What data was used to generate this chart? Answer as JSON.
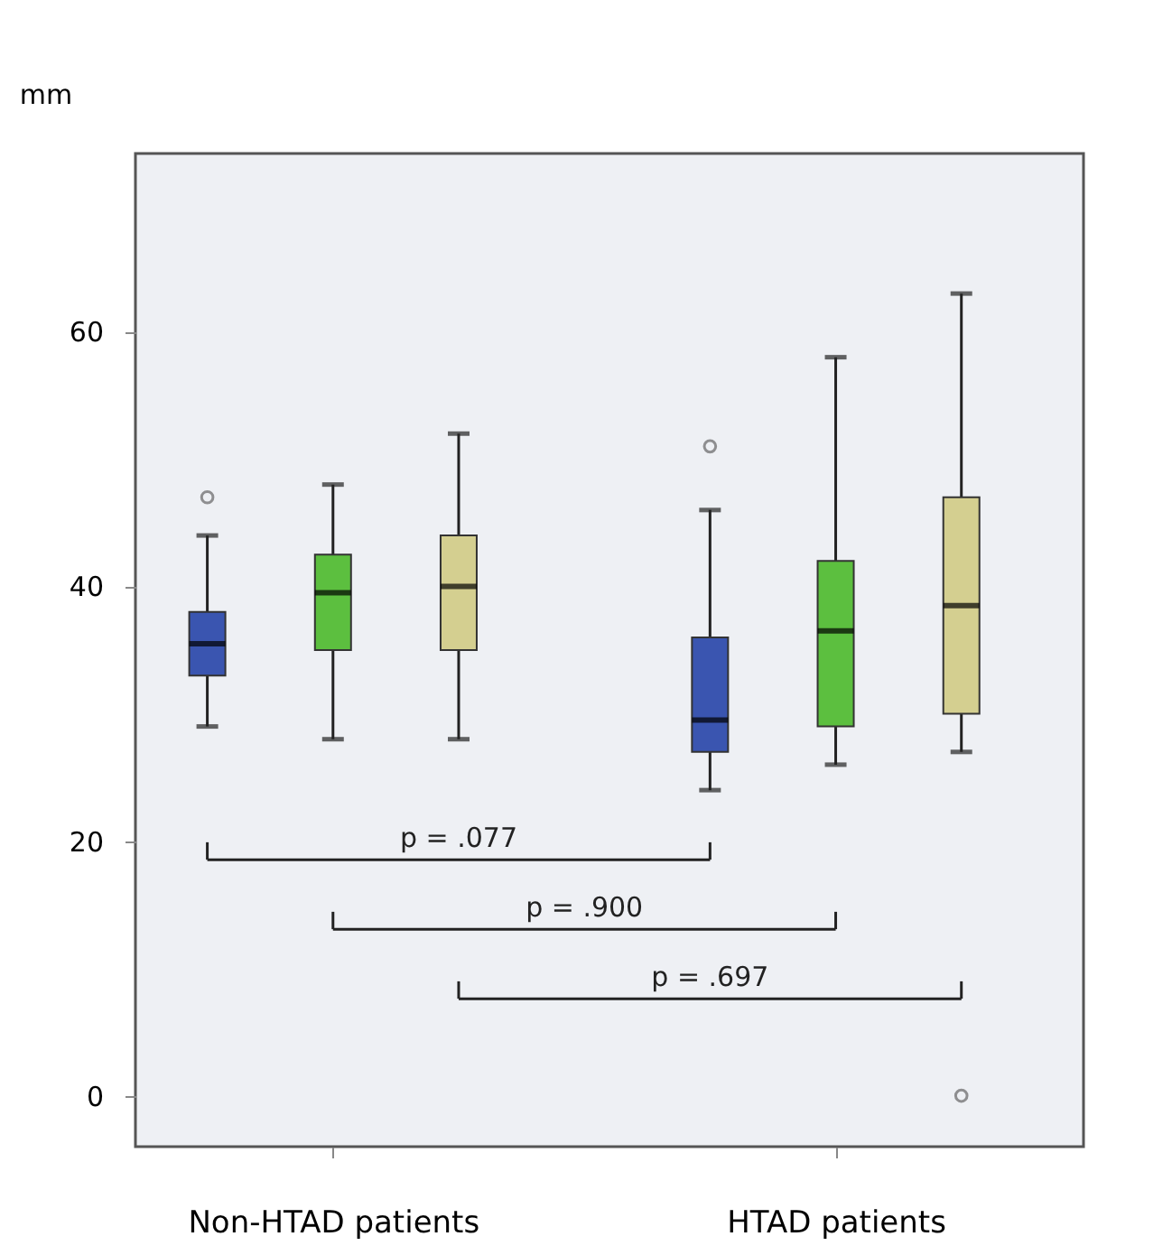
{
  "chart_data": {
    "type": "box",
    "ylabel": "mm",
    "categories": [
      "Non-HTAD patients",
      "HTAD patients"
    ],
    "series": [
      {
        "color": "#3a55b0",
        "boxes": [
          {
            "low": 29,
            "q1": 33,
            "median": 35.5,
            "q3": 38,
            "high": 44,
            "outliers": [
              47
            ]
          },
          {
            "low": 24,
            "q1": 27,
            "median": 29.5,
            "q3": 36,
            "high": 46,
            "outliers": [
              51
            ]
          }
        ]
      },
      {
        "color": "#5cbf3f",
        "boxes": [
          {
            "low": 28,
            "q1": 35,
            "median": 39.5,
            "q3": 42.5,
            "high": 48
          },
          {
            "low": 26,
            "q1": 29,
            "median": 36.5,
            "q3": 42,
            "high": 58
          }
        ]
      },
      {
        "color": "#d4cf90",
        "boxes": [
          {
            "low": 28,
            "q1": 35,
            "median": 40,
            "q3": 44,
            "high": 52
          },
          {
            "low": 27,
            "q1": 30,
            "median": 38.5,
            "q3": 47,
            "high": 63,
            "outliers": [
              0
            ]
          }
        ]
      }
    ],
    "annotations": [
      "p = .077",
      "p = .900",
      "p = .697"
    ],
    "ylim": [
      -4,
      74
    ],
    "yticks": [
      0,
      20,
      40,
      60
    ],
    "grid": false
  }
}
